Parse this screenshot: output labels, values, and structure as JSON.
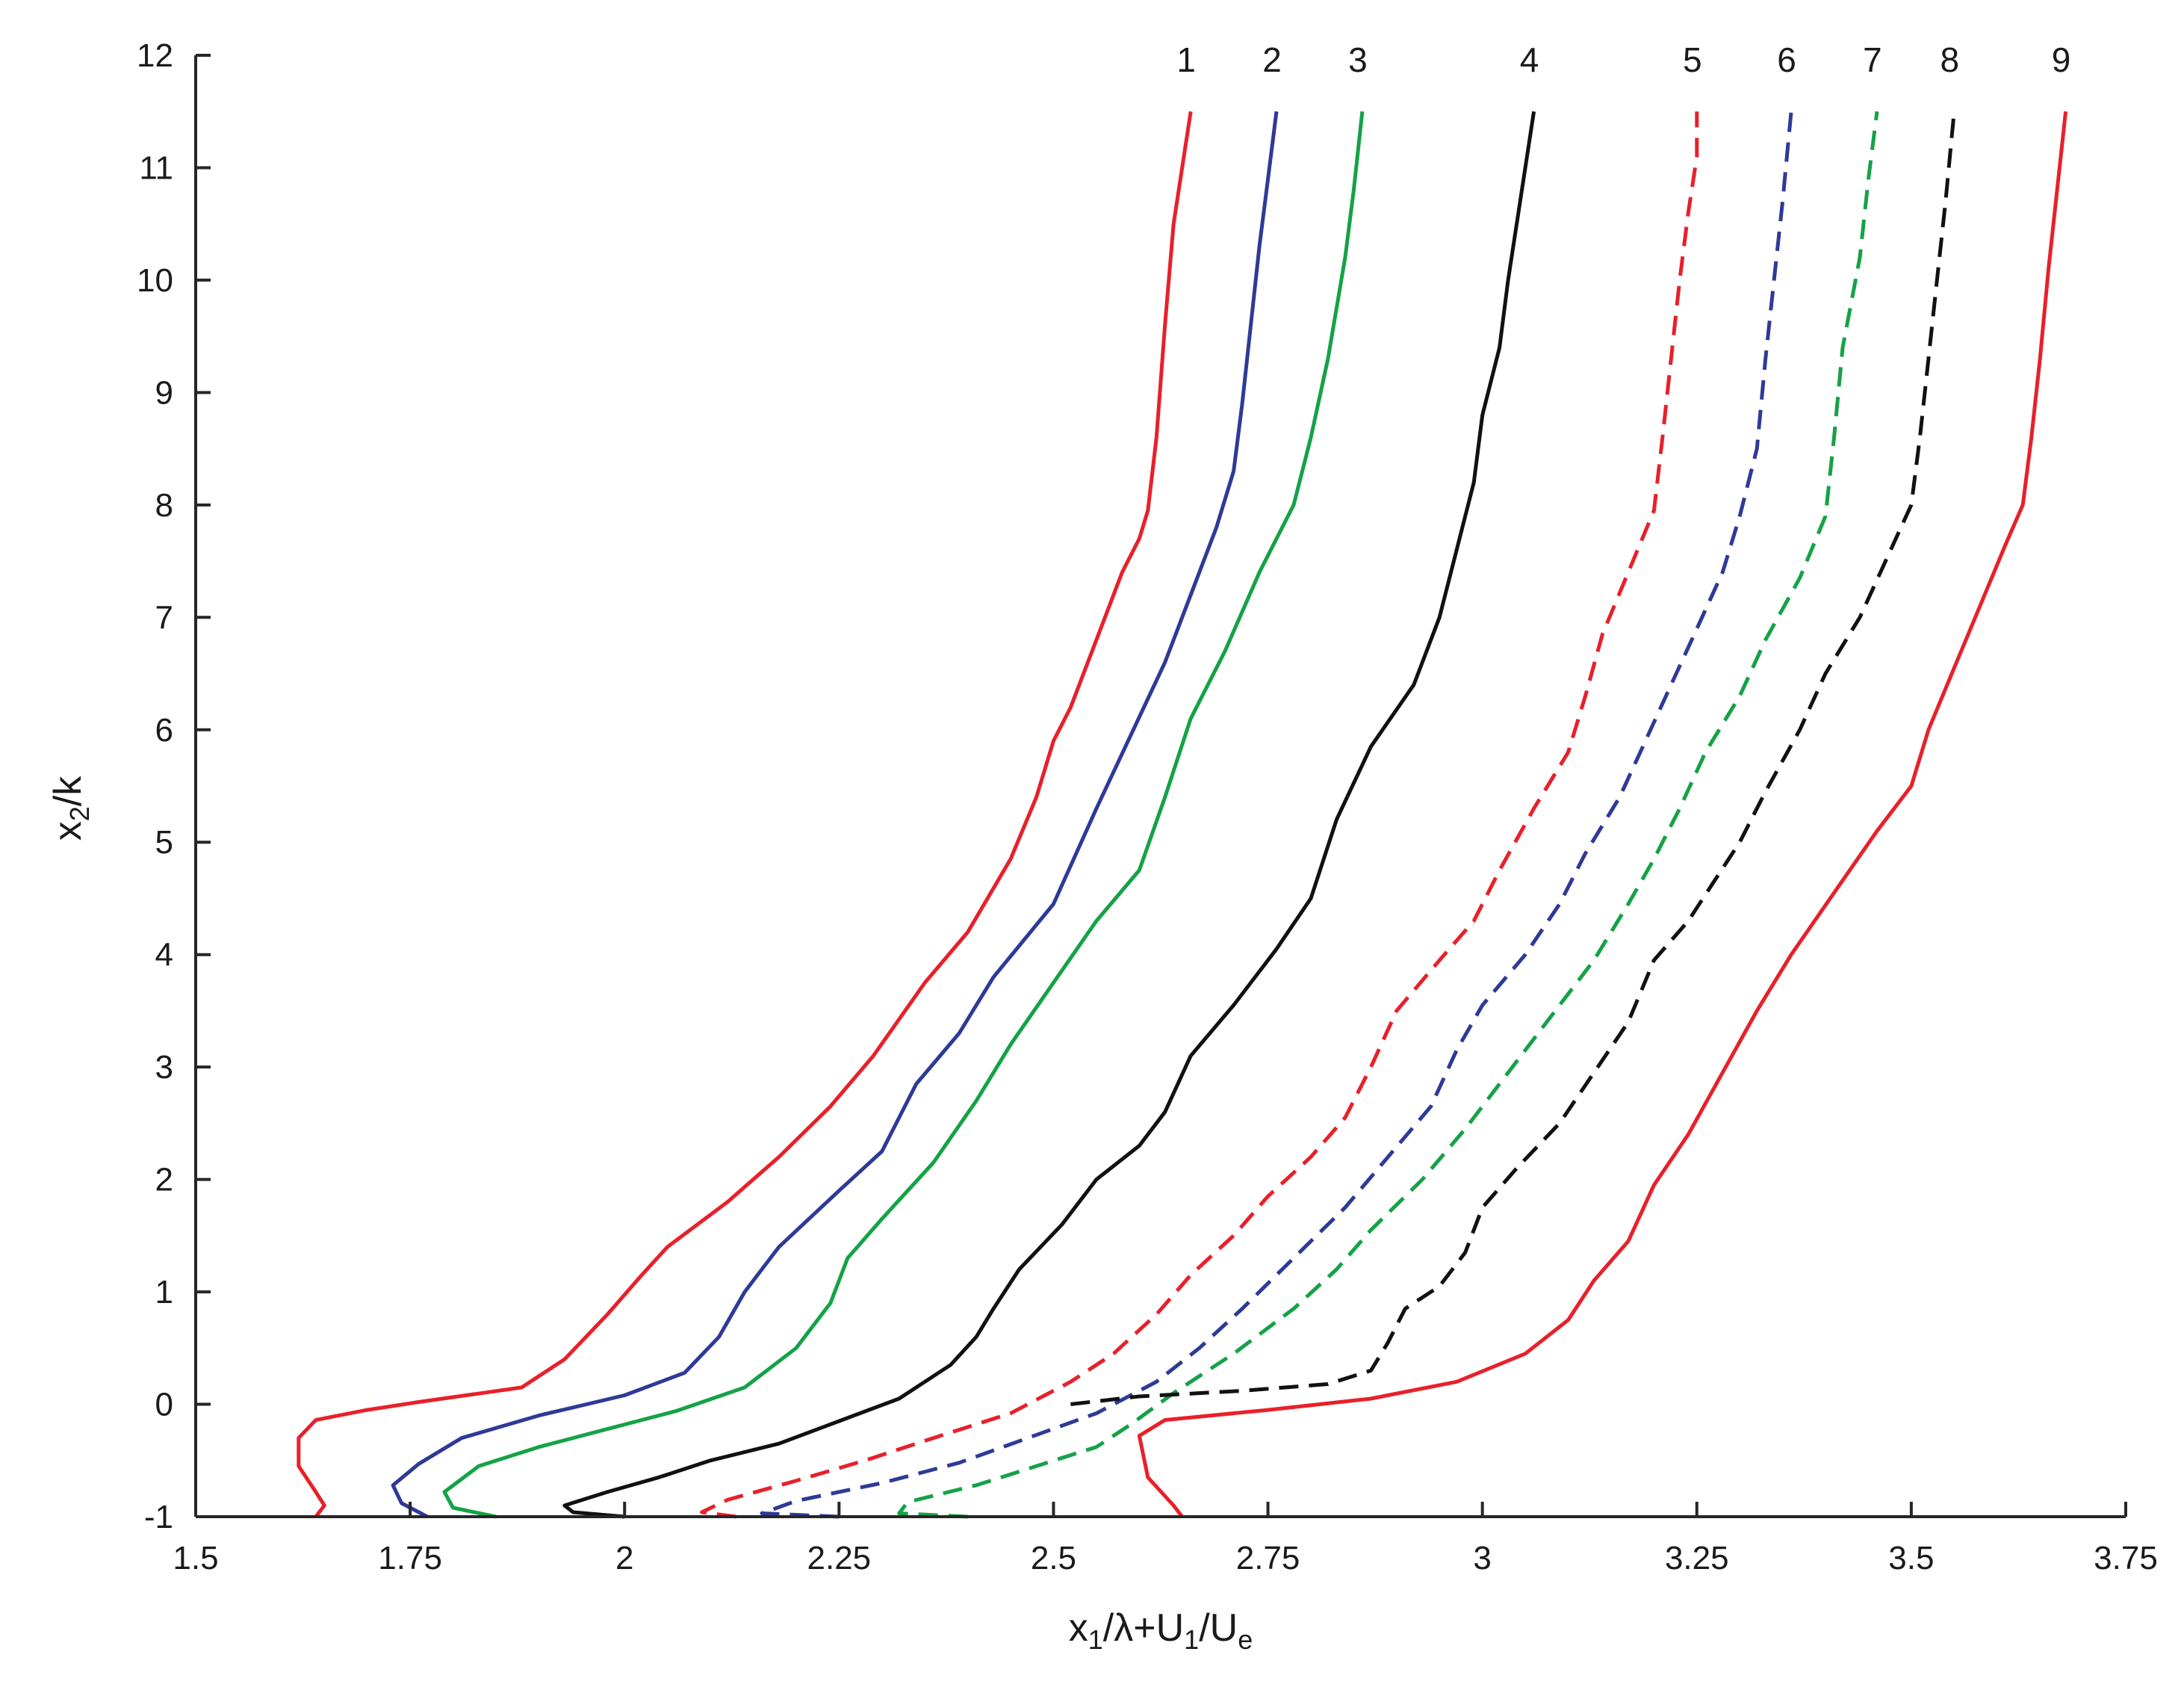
{
  "chart_data": {
    "type": "line",
    "xlabel": {
      "parts": [
        {
          "t": "x",
          "sub": false
        },
        {
          "t": "1",
          "sub": true
        },
        {
          "t": "/λ+U",
          "sub": false
        },
        {
          "t": "1",
          "sub": true
        },
        {
          "t": "/U",
          "sub": false
        },
        {
          "t": "e",
          "sub": true
        }
      ]
    },
    "ylabel": {
      "parts": [
        {
          "t": "x",
          "sub": false
        },
        {
          "t": "2",
          "sub": true
        },
        {
          "t": "/k",
          "sub": false
        }
      ]
    },
    "xlim": [
      1.5,
      3.75
    ],
    "ylim": [
      -1,
      12
    ],
    "xticks": [
      1.5,
      1.75,
      2,
      2.25,
      2.5,
      2.75,
      3,
      3.25,
      3.5,
      3.75
    ],
    "xtick_labels": [
      "1.5",
      "1.75",
      "2",
      "2.25",
      "2.5",
      "2.75",
      "3",
      "3.25",
      "3.5",
      "3.75"
    ],
    "yticks": [
      -1,
      0,
      1,
      2,
      3,
      4,
      5,
      6,
      7,
      8,
      9,
      10,
      11,
      12
    ],
    "ytick_labels": [
      "-1",
      "0",
      "1",
      "2",
      "3",
      "4",
      "5",
      "6",
      "7",
      "8",
      "9",
      "10",
      "11",
      "12"
    ],
    "grid": false,
    "series": [
      {
        "label": "1",
        "color": "#e8202a",
        "dashed": false,
        "points": [
          [
            1.64,
            -1
          ],
          [
            1.65,
            -0.9
          ],
          [
            1.64,
            -0.78
          ],
          [
            1.62,
            -0.55
          ],
          [
            1.62,
            -0.3
          ],
          [
            1.64,
            -0.14
          ],
          [
            1.7,
            -0.05
          ],
          [
            1.76,
            0.02
          ],
          [
            1.88,
            0.15
          ],
          [
            1.93,
            0.4
          ],
          [
            1.98,
            0.8
          ],
          [
            2.02,
            1.15
          ],
          [
            2.05,
            1.4
          ],
          [
            2.12,
            1.8
          ],
          [
            2.18,
            2.2
          ],
          [
            2.24,
            2.65
          ],
          [
            2.29,
            3.1
          ],
          [
            2.35,
            3.75
          ],
          [
            2.4,
            4.2
          ],
          [
            2.45,
            4.85
          ],
          [
            2.48,
            5.4
          ],
          [
            2.5,
            5.9
          ],
          [
            2.52,
            6.2
          ],
          [
            2.54,
            6.6
          ],
          [
            2.56,
            7.0
          ],
          [
            2.58,
            7.4
          ],
          [
            2.6,
            7.7
          ],
          [
            2.61,
            7.95
          ],
          [
            2.62,
            8.6
          ],
          [
            2.63,
            9.6
          ],
          [
            2.64,
            10.5
          ],
          [
            2.65,
            11.0
          ],
          [
            2.66,
            11.5
          ]
        ]
      },
      {
        "label": "2",
        "color": "#2e3a97",
        "dashed": false,
        "points": [
          [
            1.77,
            -1
          ],
          [
            1.74,
            -0.88
          ],
          [
            1.73,
            -0.72
          ],
          [
            1.76,
            -0.53
          ],
          [
            1.81,
            -0.3
          ],
          [
            1.9,
            -0.1
          ],
          [
            2.0,
            0.08
          ],
          [
            2.07,
            0.28
          ],
          [
            2.11,
            0.6
          ],
          [
            2.14,
            1.0
          ],
          [
            2.18,
            1.4
          ],
          [
            2.25,
            1.9
          ],
          [
            2.3,
            2.25
          ],
          [
            2.34,
            2.85
          ],
          [
            2.39,
            3.3
          ],
          [
            2.43,
            3.8
          ],
          [
            2.5,
            4.45
          ],
          [
            2.55,
            5.3
          ],
          [
            2.59,
            5.95
          ],
          [
            2.63,
            6.6
          ],
          [
            2.66,
            7.2
          ],
          [
            2.69,
            7.8
          ],
          [
            2.71,
            8.3
          ],
          [
            2.72,
            8.9
          ],
          [
            2.73,
            9.6
          ],
          [
            2.74,
            10.3
          ],
          [
            2.75,
            10.9
          ],
          [
            2.76,
            11.5
          ]
        ]
      },
      {
        "label": "3",
        "color": "#14a246",
        "dashed": false,
        "points": [
          [
            1.85,
            -1
          ],
          [
            1.8,
            -0.92
          ],
          [
            1.79,
            -0.78
          ],
          [
            1.83,
            -0.55
          ],
          [
            1.9,
            -0.38
          ],
          [
            1.98,
            -0.22
          ],
          [
            2.06,
            -0.06
          ],
          [
            2.14,
            0.15
          ],
          [
            2.2,
            0.5
          ],
          [
            2.24,
            0.9
          ],
          [
            2.26,
            1.3
          ],
          [
            2.3,
            1.65
          ],
          [
            2.36,
            2.15
          ],
          [
            2.41,
            2.7
          ],
          [
            2.45,
            3.2
          ],
          [
            2.5,
            3.75
          ],
          [
            2.55,
            4.3
          ],
          [
            2.6,
            4.75
          ],
          [
            2.63,
            5.4
          ],
          [
            2.66,
            6.1
          ],
          [
            2.7,
            6.7
          ],
          [
            2.74,
            7.4
          ],
          [
            2.78,
            8.0
          ],
          [
            2.8,
            8.6
          ],
          [
            2.82,
            9.3
          ],
          [
            2.84,
            10.2
          ],
          [
            2.85,
            10.8
          ],
          [
            2.86,
            11.5
          ]
        ]
      },
      {
        "label": "4",
        "color": "#111111",
        "dashed": false,
        "points": [
          [
            2.0,
            -1
          ],
          [
            1.94,
            -0.96
          ],
          [
            1.93,
            -0.9
          ],
          [
            1.98,
            -0.78
          ],
          [
            2.04,
            -0.65
          ],
          [
            2.1,
            -0.5
          ],
          [
            2.18,
            -0.35
          ],
          [
            2.25,
            -0.15
          ],
          [
            2.32,
            0.05
          ],
          [
            2.38,
            0.35
          ],
          [
            2.41,
            0.6
          ],
          [
            2.43,
            0.85
          ],
          [
            2.46,
            1.2
          ],
          [
            2.51,
            1.6
          ],
          [
            2.55,
            2.0
          ],
          [
            2.6,
            2.3
          ],
          [
            2.63,
            2.6
          ],
          [
            2.66,
            3.1
          ],
          [
            2.71,
            3.55
          ],
          [
            2.76,
            4.05
          ],
          [
            2.8,
            4.5
          ],
          [
            2.83,
            5.2
          ],
          [
            2.87,
            5.85
          ],
          [
            2.92,
            6.4
          ],
          [
            2.95,
            7.0
          ],
          [
            2.97,
            7.6
          ],
          [
            2.99,
            8.2
          ],
          [
            3.0,
            8.8
          ],
          [
            3.02,
            9.4
          ],
          [
            3.03,
            10.0
          ],
          [
            3.04,
            10.5
          ],
          [
            3.05,
            11.0
          ],
          [
            3.06,
            11.5
          ]
        ]
      },
      {
        "label": "5",
        "color": "#e8202a",
        "dashed": true,
        "points": [
          [
            2.13,
            -1
          ],
          [
            2.09,
            -0.96
          ],
          [
            2.12,
            -0.85
          ],
          [
            2.2,
            -0.68
          ],
          [
            2.28,
            -0.5
          ],
          [
            2.36,
            -0.3
          ],
          [
            2.45,
            -0.08
          ],
          [
            2.52,
            0.2
          ],
          [
            2.57,
            0.45
          ],
          [
            2.62,
            0.8
          ],
          [
            2.66,
            1.15
          ],
          [
            2.71,
            1.5
          ],
          [
            2.75,
            1.85
          ],
          [
            2.8,
            2.2
          ],
          [
            2.84,
            2.55
          ],
          [
            2.87,
            3.0
          ],
          [
            2.9,
            3.5
          ],
          [
            2.95,
            3.95
          ],
          [
            2.99,
            4.3
          ],
          [
            3.02,
            4.75
          ],
          [
            3.06,
            5.3
          ],
          [
            3.1,
            5.8
          ],
          [
            3.12,
            6.3
          ],
          [
            3.14,
            6.85
          ],
          [
            3.17,
            7.4
          ],
          [
            3.2,
            7.95
          ],
          [
            3.21,
            8.6
          ],
          [
            3.22,
            9.3
          ],
          [
            3.23,
            10.0
          ],
          [
            3.24,
            10.6
          ],
          [
            3.25,
            11.1
          ],
          [
            3.25,
            11.5
          ]
        ]
      },
      {
        "label": "6",
        "color": "#2e3a97",
        "dashed": true,
        "points": [
          [
            2.25,
            -1
          ],
          [
            2.16,
            -0.97
          ],
          [
            2.2,
            -0.86
          ],
          [
            2.3,
            -0.7
          ],
          [
            2.39,
            -0.52
          ],
          [
            2.47,
            -0.3
          ],
          [
            2.55,
            -0.08
          ],
          [
            2.62,
            0.2
          ],
          [
            2.67,
            0.5
          ],
          [
            2.72,
            0.85
          ],
          [
            2.78,
            1.3
          ],
          [
            2.84,
            1.75
          ],
          [
            2.89,
            2.2
          ],
          [
            2.94,
            2.65
          ],
          [
            2.97,
            3.15
          ],
          [
            3.0,
            3.55
          ],
          [
            3.05,
            4.0
          ],
          [
            3.09,
            4.45
          ],
          [
            3.12,
            4.9
          ],
          [
            3.16,
            5.4
          ],
          [
            3.19,
            5.9
          ],
          [
            3.22,
            6.4
          ],
          [
            3.25,
            6.9
          ],
          [
            3.28,
            7.4
          ],
          [
            3.3,
            7.9
          ],
          [
            3.32,
            8.5
          ],
          [
            3.33,
            9.3
          ],
          [
            3.34,
            10.0
          ],
          [
            3.35,
            10.7
          ],
          [
            3.36,
            11.5
          ]
        ]
      },
      {
        "label": "7",
        "color": "#14a246",
        "dashed": true,
        "points": [
          [
            2.4,
            -1
          ],
          [
            2.32,
            -0.97
          ],
          [
            2.33,
            -0.87
          ],
          [
            2.41,
            -0.72
          ],
          [
            2.48,
            -0.55
          ],
          [
            2.55,
            -0.38
          ],
          [
            2.59,
            -0.18
          ],
          [
            2.64,
            0.1
          ],
          [
            2.71,
            0.45
          ],
          [
            2.78,
            0.85
          ],
          [
            2.83,
            1.2
          ],
          [
            2.87,
            1.55
          ],
          [
            2.93,
            2.0
          ],
          [
            2.98,
            2.45
          ],
          [
            3.03,
            2.95
          ],
          [
            3.08,
            3.45
          ],
          [
            3.13,
            3.95
          ],
          [
            3.17,
            4.45
          ],
          [
            3.2,
            4.85
          ],
          [
            3.23,
            5.3
          ],
          [
            3.26,
            5.8
          ],
          [
            3.3,
            6.3
          ],
          [
            3.33,
            6.8
          ],
          [
            3.37,
            7.35
          ],
          [
            3.4,
            7.9
          ],
          [
            3.41,
            8.6
          ],
          [
            3.42,
            9.4
          ],
          [
            3.44,
            10.2
          ],
          [
            3.45,
            10.9
          ],
          [
            3.46,
            11.5
          ]
        ]
      },
      {
        "label": "8",
        "color": "#111111",
        "dashed": true,
        "points": [
          [
            2.52,
            0
          ],
          [
            2.6,
            0.07
          ],
          [
            2.72,
            0.12
          ],
          [
            2.82,
            0.18
          ],
          [
            2.87,
            0.3
          ],
          [
            2.89,
            0.55
          ],
          [
            2.91,
            0.85
          ],
          [
            2.95,
            1.05
          ],
          [
            2.98,
            1.35
          ],
          [
            3.0,
            1.75
          ],
          [
            3.04,
            2.1
          ],
          [
            3.09,
            2.5
          ],
          [
            3.13,
            2.95
          ],
          [
            3.17,
            3.4
          ],
          [
            3.2,
            3.95
          ],
          [
            3.24,
            4.3
          ],
          [
            3.27,
            4.65
          ],
          [
            3.3,
            5.0
          ],
          [
            3.33,
            5.45
          ],
          [
            3.37,
            6.0
          ],
          [
            3.4,
            6.5
          ],
          [
            3.44,
            7.0
          ],
          [
            3.47,
            7.5
          ],
          [
            3.5,
            8.0
          ],
          [
            3.51,
            8.6
          ],
          [
            3.52,
            9.3
          ],
          [
            3.53,
            10.0
          ],
          [
            3.54,
            10.7
          ],
          [
            3.55,
            11.5
          ]
        ]
      },
      {
        "label": "9",
        "color": "#e8202a",
        "dashed": true,
        "points": []
      },
      {
        "label": "9",
        "color": "#e8202a",
        "dashed": false,
        "points": [
          [
            2.65,
            -1
          ],
          [
            2.64,
            -0.9
          ],
          [
            2.61,
            -0.65
          ],
          [
            2.6,
            -0.28
          ],
          [
            2.63,
            -0.14
          ],
          [
            2.75,
            -0.05
          ],
          [
            2.87,
            0.05
          ],
          [
            2.97,
            0.2
          ],
          [
            3.05,
            0.45
          ],
          [
            3.1,
            0.75
          ],
          [
            3.13,
            1.1
          ],
          [
            3.17,
            1.45
          ],
          [
            3.2,
            1.95
          ],
          [
            3.24,
            2.4
          ],
          [
            3.28,
            2.95
          ],
          [
            3.32,
            3.5
          ],
          [
            3.36,
            4.0
          ],
          [
            3.41,
            4.55
          ],
          [
            3.46,
            5.1
          ],
          [
            3.5,
            5.5
          ],
          [
            3.52,
            6.0
          ],
          [
            3.55,
            6.55
          ],
          [
            3.58,
            7.1
          ],
          [
            3.61,
            7.65
          ],
          [
            3.63,
            8.0
          ],
          [
            3.64,
            8.6
          ],
          [
            3.65,
            9.3
          ],
          [
            3.66,
            10.1
          ],
          [
            3.67,
            10.8
          ],
          [
            3.68,
            11.5
          ]
        ]
      }
    ]
  }
}
